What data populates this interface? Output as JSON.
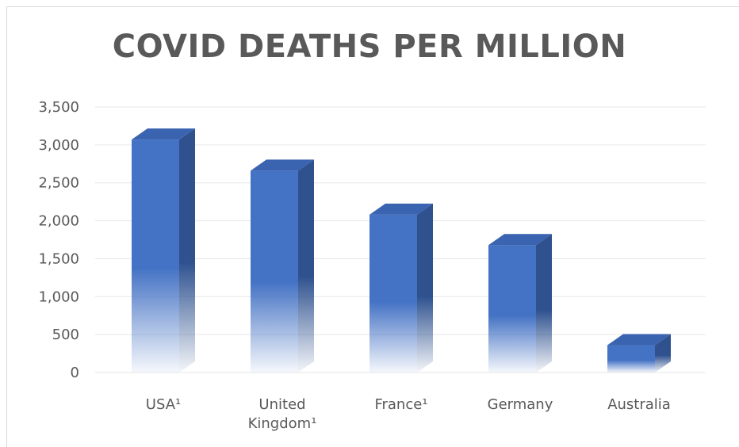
{
  "chart_data": {
    "type": "bar",
    "title": "COVID DEATHS PER MILLION",
    "categories": [
      "USA¹",
      "United Kingdom¹",
      "France¹",
      "Germany",
      "Australia"
    ],
    "category_lines": [
      [
        "USA¹"
      ],
      [
        "United",
        "Kingdom¹"
      ],
      [
        "France¹"
      ],
      [
        "Germany"
      ],
      [
        "Australia"
      ]
    ],
    "values": [
      3070,
      2660,
      2080,
      1680,
      360
    ],
    "ylim": [
      0,
      3500
    ],
    "yticks": [
      0,
      500,
      1000,
      1500,
      2000,
      2500,
      3000,
      3500
    ],
    "ytick_labels": [
      "0",
      "500",
      "1,000",
      "1,500",
      "2,000",
      "2,500",
      "3,000",
      "3,500"
    ],
    "xlabel": "",
    "ylabel": "",
    "grid": true,
    "legend": "none",
    "style": "3d-column-gradient",
    "colors": {
      "bar_front": "#4472C4",
      "bar_side": "#2F528F",
      "bar_top": "#3A63B0",
      "gridline": "#e6e6e6",
      "text": "#595959"
    }
  }
}
